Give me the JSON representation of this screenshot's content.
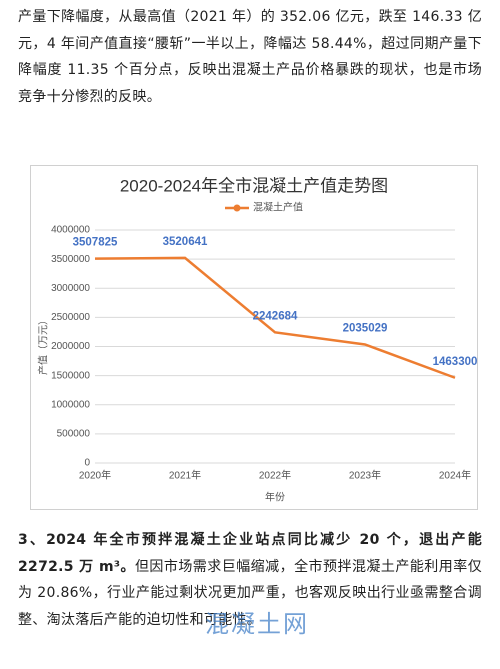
{
  "paragraphs": [
    "产量下降幅度，从最高值（2021 年）的 352.06 亿元，跌至 146.33 亿元，4 年间产值直接“腰斩”一半以上，降幅达 58.44%，超过同期产量下降幅度 11.35 个百分点，反映出混凝土产品价格暴跌的现状，也是市场竞争十分惨烈的反映。",
    {
      "bold": "3、2024 年全市预拌混凝土企业站点同比减少 20 个，退出产能 2272.5 万 m³。",
      "text": "但因市场需求巨幅缩减，全市预拌混凝土产能利用率仅为 20.86%，行业产能过剩状况更加严重，也客观反映出行业亟需整合调整、淘汰落后产能的迫切性和可能性。"
    }
  ],
  "watermark": "混凝土网",
  "chart_data": {
    "type": "line",
    "title": "2020-2024年全市混凝土产值走势图",
    "x_label": "年份",
    "y_label": "产值（万元）",
    "categories": [
      "2020年",
      "2021年",
      "2022年",
      "2023年",
      "2024年"
    ],
    "series": [
      {
        "name": "混凝土产值",
        "color": "#ed7d31",
        "label_color": "#4472c4",
        "values": [
          3507825,
          3520641,
          2242684,
          2035029,
          1463300
        ]
      }
    ],
    "ylim": [
      0,
      4000000
    ],
    "yticks": [
      0,
      500000,
      1000000,
      1500000,
      2000000,
      2500000,
      3000000,
      3500000,
      4000000
    ],
    "grid": true,
    "legend": "top"
  }
}
